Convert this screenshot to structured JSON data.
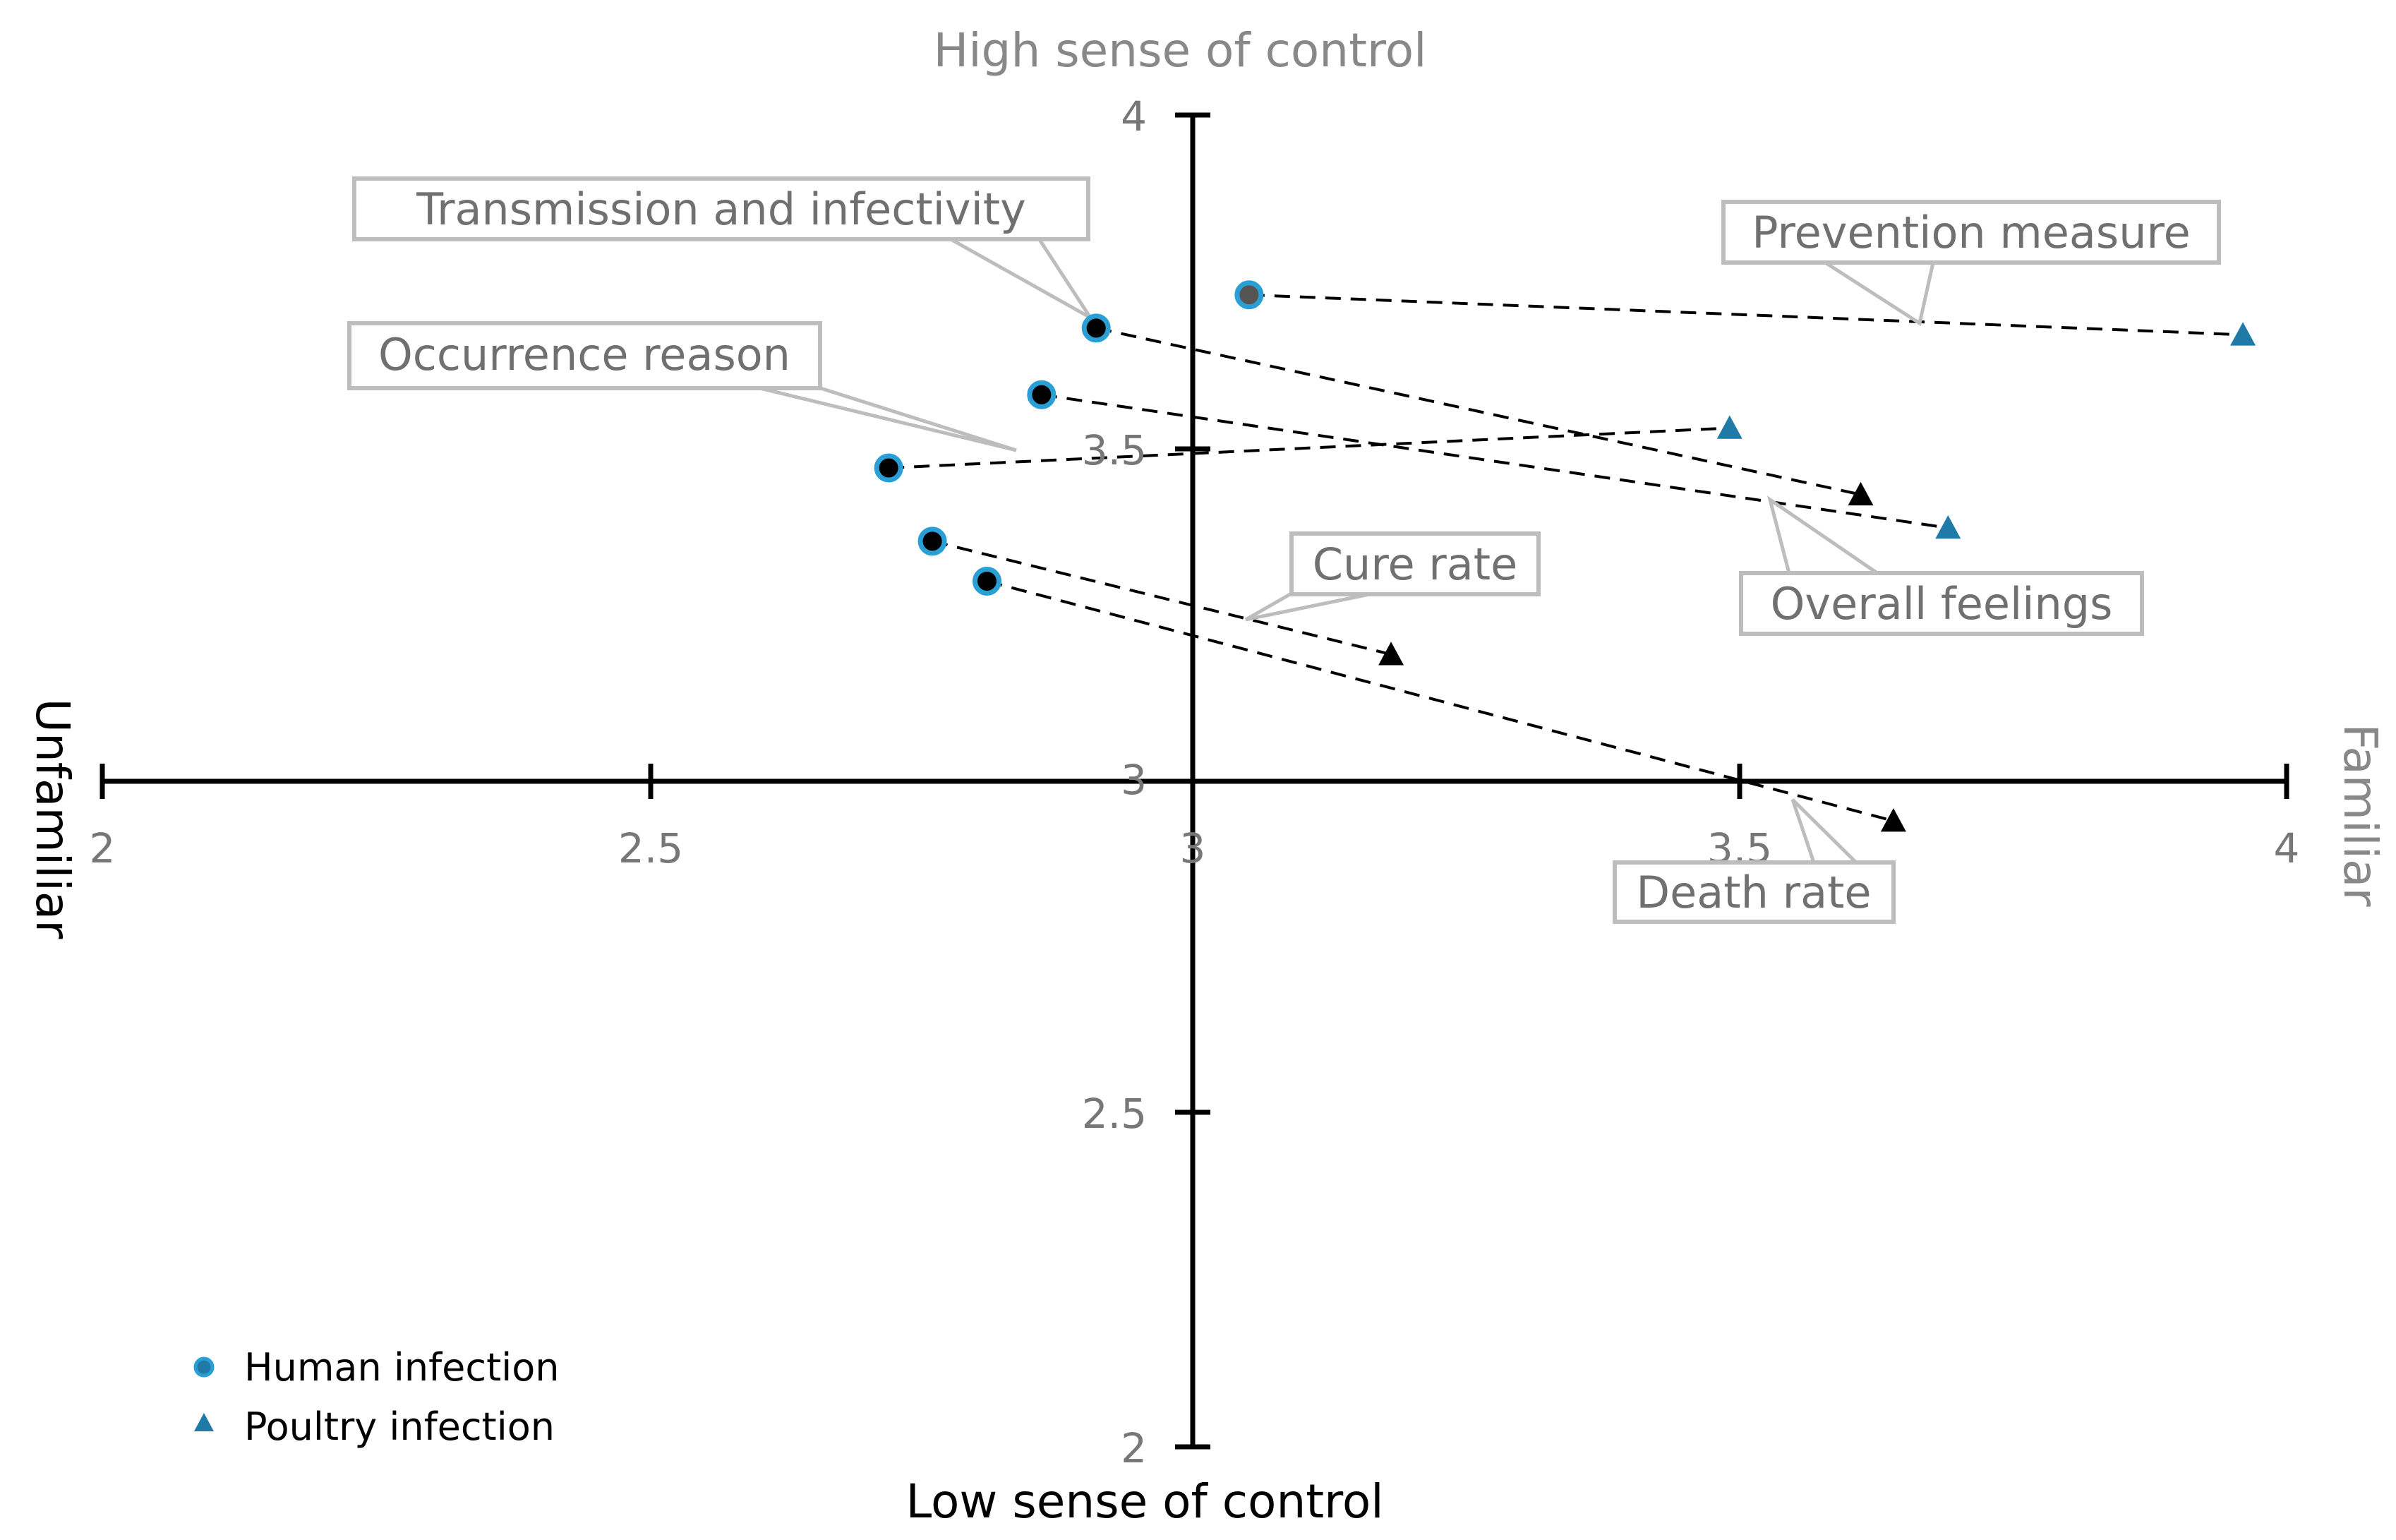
{
  "chart_data": {
    "type": "scatter",
    "title": "",
    "xlim": [
      2,
      4
    ],
    "ylim": [
      2,
      4
    ],
    "x_ticks": [
      "2",
      "2.5",
      "3",
      "3.5",
      "4"
    ],
    "y_ticks": [
      "2",
      "2.5",
      "3",
      "3.5",
      "4"
    ],
    "axis_crossing": {
      "x": 3,
      "y": 3
    },
    "quadrant_labels": {
      "top": "High sense of control",
      "bottom": "Low sense of control",
      "left": "Unfamiliar",
      "right": "Familiar"
    },
    "series": [
      {
        "name": "Human infection",
        "marker": "circle"
      },
      {
        "name": "Poultry infection",
        "marker": "triangle"
      }
    ],
    "items": [
      {
        "label": "Prevention measure",
        "human": {
          "x": 3.05,
          "y": 3.73
        },
        "poultry": {
          "x": 3.96,
          "y": 3.67
        },
        "human_fill": "#555555",
        "poultry_fill": "#1f7aa8"
      },
      {
        "label": "Transmission and infectivity",
        "human": {
          "x": 2.91,
          "y": 3.68
        },
        "poultry": {
          "x": 3.61,
          "y": 3.43
        },
        "human_fill": "#000000",
        "poultry_fill": "#000000"
      },
      {
        "label": "Overall feelings",
        "human": {
          "x": 2.86,
          "y": 3.58
        },
        "poultry": {
          "x": 3.69,
          "y": 3.38
        },
        "human_fill": "#000000",
        "poultry_fill": "#1f7aa8"
      },
      {
        "label": "Occurrence reason",
        "human": {
          "x": 2.72,
          "y": 3.47
        },
        "poultry": {
          "x": 3.49,
          "y": 3.53
        },
        "human_fill": "#000000",
        "poultry_fill": "#1f7aa8"
      },
      {
        "label": "Cure rate",
        "human": {
          "x": 2.76,
          "y": 3.36
        },
        "poultry": {
          "x": 3.18,
          "y": 3.19
        },
        "human_fill": "#000000",
        "poultry_fill": "#000000"
      },
      {
        "label": "Death rate",
        "human": {
          "x": 2.81,
          "y": 3.3
        },
        "poultry": {
          "x": 3.64,
          "y": 2.94
        },
        "human_fill": "#000000",
        "poultry_fill": "#000000"
      }
    ]
  },
  "colors": {
    "marker_outline": "#2a9fd6",
    "poultry_blue": "#1f7aa8",
    "legend_circle": "#1f7aa8",
    "legend_triangle": "#1f7aa8"
  }
}
